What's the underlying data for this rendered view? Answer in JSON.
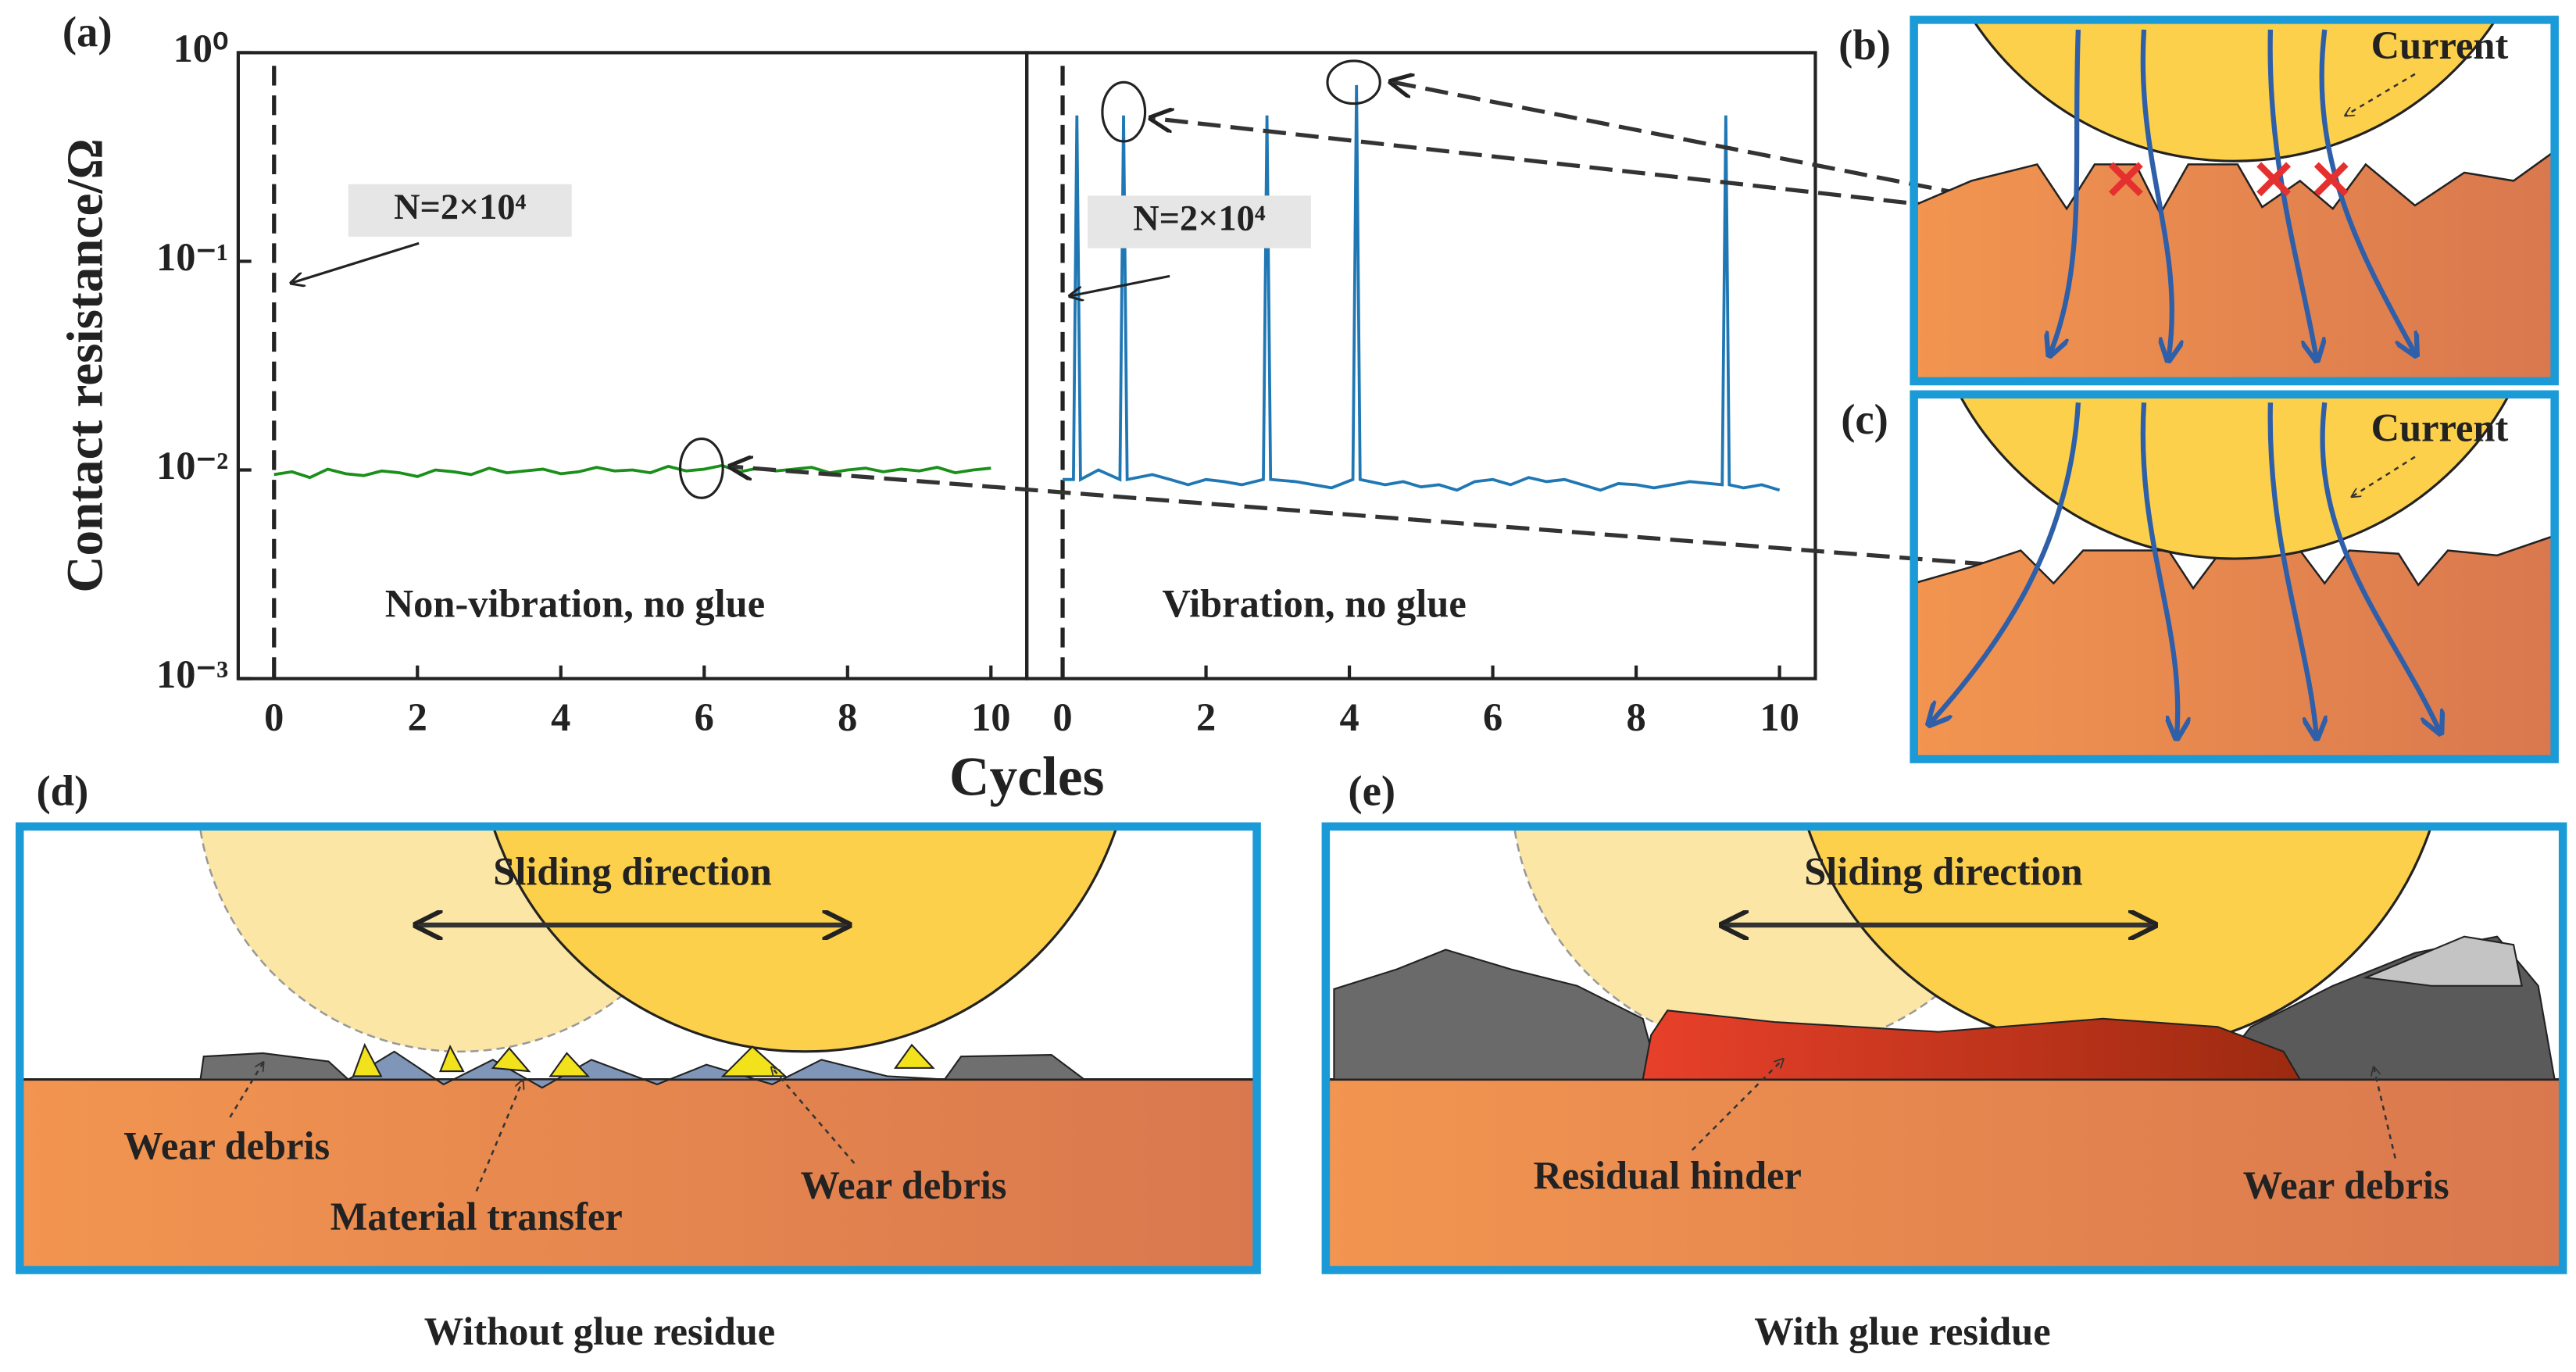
{
  "panel_labels": {
    "a": "(a)",
    "b": "(b)",
    "c": "(c)",
    "d": "(d)",
    "e": "(e)"
  },
  "chart_data": [
    {
      "type": "line",
      "ylabel": "Contact resistance/Ω",
      "xlabel": "Cycles",
      "annotation": "N=2×10⁴",
      "label": "Non-vibration, no glue",
      "vline": 0,
      "yscale": "log",
      "ylim": [
        0.001,
        1
      ],
      "yticks": [
        {
          "value": 0.001,
          "label": "10⁻³"
        },
        {
          "value": 0.01,
          "label": "10⁻²"
        },
        {
          "value": 0.1,
          "label": "10⁻¹"
        },
        {
          "value": 1,
          "label": "10⁰"
        }
      ],
      "xlim": [
        -0.5,
        10.5
      ],
      "xticks": [
        0,
        2,
        4,
        6,
        8,
        10
      ],
      "series": [
        {
          "color": "#1a8f1a",
          "x": [
            0,
            0.25,
            0.5,
            0.75,
            1,
            1.25,
            1.5,
            1.75,
            2,
            2.25,
            2.5,
            2.75,
            3,
            3.25,
            3.5,
            3.75,
            4,
            4.25,
            4.5,
            4.75,
            5,
            5.25,
            5.5,
            5.75,
            6,
            6.25,
            6.5,
            6.75,
            7,
            7.25,
            7.5,
            7.75,
            8,
            8.25,
            8.5,
            8.75,
            9,
            9.25,
            9.5,
            9.75,
            10
          ],
          "values": [
            0.0095,
            0.0098,
            0.0092,
            0.0101,
            0.0096,
            0.0094,
            0.0099,
            0.0097,
            0.0093,
            0.01,
            0.0098,
            0.0095,
            0.0102,
            0.0097,
            0.0099,
            0.0101,
            0.0096,
            0.0098,
            0.0103,
            0.0099,
            0.01,
            0.0097,
            0.0104,
            0.0099,
            0.0101,
            0.0105,
            0.0098,
            0.0102,
            0.0099,
            0.0101,
            0.0103,
            0.0097,
            0.01,
            0.0102,
            0.0098,
            0.0101,
            0.0099,
            0.0103,
            0.0097,
            0.01,
            0.0102
          ]
        }
      ]
    },
    {
      "type": "line",
      "annotation": "N=2×10⁴",
      "label": "Vibration, no glue",
      "vline": 0,
      "yscale": "log",
      "ylim": [
        0.001,
        1
      ],
      "xlim": [
        -0.5,
        10.5
      ],
      "xticks": [
        0,
        2,
        4,
        6,
        8,
        10
      ],
      "series": [
        {
          "color": "#1f77b4",
          "x": [
            0,
            0.15,
            0.2,
            0.25,
            0.5,
            0.8,
            0.85,
            0.9,
            1.25,
            1.5,
            1.75,
            2,
            2.25,
            2.5,
            2.8,
            2.85,
            2.9,
            3.25,
            3.5,
            3.75,
            4.05,
            4.1,
            4.15,
            4.5,
            4.75,
            5,
            5.25,
            5.5,
            5.75,
            6,
            6.25,
            6.5,
            6.75,
            7,
            7.25,
            7.5,
            7.75,
            8,
            8.25,
            8.5,
            8.75,
            9.2,
            9.25,
            9.3,
            9.5,
            9.75,
            10
          ],
          "values": [
            0.009,
            0.009,
            0.5,
            0.009,
            0.01,
            0.009,
            0.5,
            0.009,
            0.0095,
            0.009,
            0.0085,
            0.009,
            0.0088,
            0.0085,
            0.009,
            0.5,
            0.009,
            0.0088,
            0.0085,
            0.0082,
            0.009,
            0.7,
            0.009,
            0.0085,
            0.0088,
            0.0083,
            0.0085,
            0.008,
            0.0088,
            0.009,
            0.0085,
            0.0092,
            0.0088,
            0.009,
            0.0085,
            0.008,
            0.0086,
            0.0085,
            0.0082,
            0.0085,
            0.0088,
            0.0085,
            0.5,
            0.0085,
            0.0082,
            0.0085,
            0.008
          ]
        }
      ]
    }
  ],
  "diagrams": {
    "b": {
      "current": "Current"
    },
    "c": {
      "current": "Current"
    },
    "d": {
      "sliding": "Sliding direction",
      "debris_left": "Wear debris",
      "transfer": "Material transfer",
      "debris_right": "Wear debris",
      "caption": "Without glue residue"
    },
    "e": {
      "sliding": "Sliding direction",
      "residue": "Residual hinder",
      "debris": "Wear debris",
      "caption": "With glue residue"
    }
  }
}
